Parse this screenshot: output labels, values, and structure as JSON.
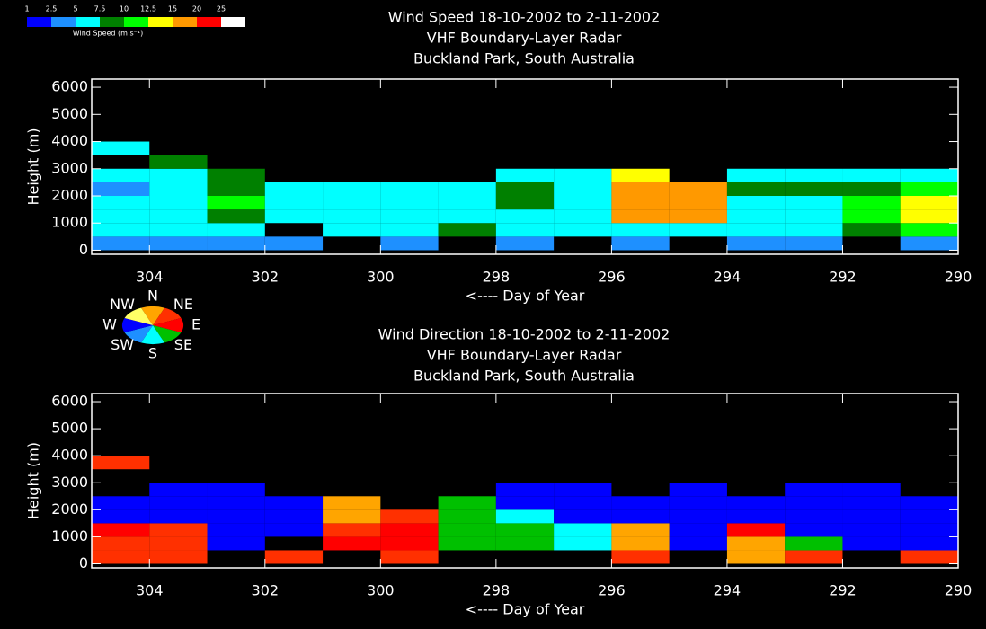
{
  "chart_data": [
    {
      "type": "heatmap",
      "title": [
        "Wind Speed  18-10-2002 to 2-11-2002",
        "VHF Boundary-Layer Radar",
        "Buckland Park, South Australia"
      ],
      "x_label": "<---- Day of Year",
      "y_label": "Height (m)",
      "colorbar": {
        "title": "Wind Speed (m s⁻¹)",
        "bounds": [
          1,
          {
            "value": 2.5,
            "label": "2.5"
          },
          5,
          {
            "value": 7.5,
            "label": "7.5"
          },
          10,
          {
            "value": 12.5,
            "label": "12.5"
          },
          15,
          20,
          25
        ],
        "colors": [
          "#0000ff",
          "#1e90ff",
          "#00ffff",
          "#008000",
          "#00ff00",
          "#ffff00",
          "#ff9900",
          "#ff0000",
          "#ffffff"
        ]
      },
      "x": [
        304.5,
        303.5,
        302.5,
        301.5,
        300.5,
        299.5,
        298.5,
        297.5,
        296.5,
        295.5,
        294.5,
        293.5,
        292.5,
        291.5,
        290.5
      ],
      "y": [
        250,
        750,
        1250,
        1750,
        2250,
        2750,
        3250,
        3750
      ],
      "values": [
        [
          3,
          5,
          5,
          5,
          4,
          5,
          null,
          5
        ],
        [
          3,
          6,
          5,
          5,
          6,
          7,
          8,
          null
        ],
        [
          3,
          5,
          8,
          12,
          9,
          8,
          null,
          null
        ],
        [
          3,
          null,
          6,
          6,
          6,
          null,
          null,
          null
        ],
        [
          null,
          6,
          6,
          7,
          7,
          null,
          null,
          null
        ],
        [
          3,
          7,
          6,
          6,
          6,
          null,
          null,
          null
        ],
        [
          null,
          8,
          6,
          7,
          6,
          null,
          null,
          null
        ],
        [
          3,
          7,
          7,
          9,
          9,
          7,
          null,
          null
        ],
        [
          null,
          6,
          6,
          7,
          6,
          6,
          null,
          null
        ],
        [
          3,
          7,
          16,
          16,
          16,
          14,
          null,
          null
        ],
        [
          null,
          6,
          18,
          17,
          17,
          null,
          null,
          null
        ],
        [
          3,
          6,
          5,
          6,
          8,
          6,
          null,
          null
        ],
        [
          3,
          6,
          6,
          7,
          8,
          7,
          null,
          null
        ],
        [
          null,
          8,
          10,
          10,
          8,
          6,
          null,
          null
        ],
        [
          3,
          12,
          14,
          13,
          11,
          6,
          null,
          null
        ]
      ],
      "xlim": [
        305,
        290
      ],
      "xticks": [
        304,
        302,
        300,
        298,
        296,
        294,
        292,
        290
      ],
      "ylim": [
        -150,
        6300
      ],
      "yticks": [
        0,
        1000,
        2000,
        3000,
        4000,
        5000,
        6000
      ]
    },
    {
      "type": "heatmap",
      "title": [
        "Wind Direction  18-10-2002 to 2-11-2002",
        "VHF Boundary-Layer Radar",
        "Buckland Park, South Australia"
      ],
      "x_label": "<---- Day of Year",
      "y_label": "Height (m)",
      "compass": {
        "labels": [
          "N",
          "NE",
          "E",
          "SE",
          "S",
          "SW",
          "W",
          "NW"
        ],
        "colors": [
          "#ffa500",
          "#ff3000",
          "#ff0000",
          "#00c000",
          "#00ffff",
          "#1e90ff",
          "#0000ff",
          "#ffff66"
        ]
      },
      "x": [
        304.5,
        303.5,
        302.5,
        301.5,
        300.5,
        299.5,
        298.5,
        297.5,
        296.5,
        295.5,
        294.5,
        293.5,
        292.5,
        291.5,
        290.5
      ],
      "y": [
        250,
        750,
        1250,
        1750,
        2250,
        2750,
        3250,
        3750
      ],
      "values": [
        [
          45,
          60,
          90,
          270,
          270,
          null,
          null,
          45
        ],
        [
          60,
          60,
          60,
          270,
          250,
          270,
          null,
          null
        ],
        [
          null,
          270,
          250,
          250,
          250,
          250,
          null,
          null
        ],
        [
          60,
          null,
          250,
          250,
          250,
          null,
          null,
          null
        ],
        [
          null,
          90,
          60,
          0,
          0,
          null,
          null,
          null
        ],
        [
          60,
          90,
          90,
          60,
          null,
          null,
          null,
          null
        ],
        [
          null,
          135,
          135,
          135,
          135,
          null,
          null,
          null
        ],
        [
          null,
          150,
          135,
          180,
          250,
          250,
          null,
          null
        ],
        [
          null,
          180,
          180,
          270,
          270,
          270,
          null,
          null
        ],
        [
          45,
          0,
          0,
          270,
          270,
          null,
          null,
          null
        ],
        [
          null,
          270,
          270,
          270,
          270,
          270,
          null,
          null
        ],
        [
          0,
          0,
          90,
          270,
          270,
          null,
          null,
          null
        ],
        [
          45,
          135,
          250,
          270,
          270,
          270,
          null,
          null
        ],
        [
          null,
          250,
          250,
          250,
          250,
          270,
          null,
          null
        ],
        [
          45,
          250,
          250,
          250,
          250,
          null,
          null,
          null
        ]
      ],
      "xlim": [
        305,
        290
      ],
      "xticks": [
        304,
        302,
        300,
        298,
        296,
        294,
        292,
        290
      ],
      "ylim": [
        -150,
        6300
      ],
      "yticks": [
        0,
        1000,
        2000,
        3000,
        4000,
        5000,
        6000
      ]
    }
  ]
}
